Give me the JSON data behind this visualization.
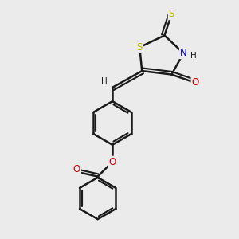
{
  "bg_color": "#ebebeb",
  "bond_color": "#1a1a1a",
  "S_color": "#b8b800",
  "N_color": "#0000cc",
  "O_color": "#cc0000",
  "H_color": "#1a1a1a",
  "bond_width": 1.8,
  "figsize": [
    3.0,
    3.0
  ],
  "dpi": 100,
  "xlim": [
    0,
    10
  ],
  "ylim": [
    0,
    10
  ]
}
